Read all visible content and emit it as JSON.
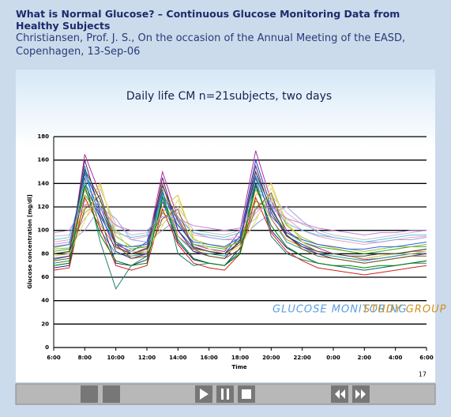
{
  "header": {
    "title": "What is Normal Glucose? – Continuous Glucose Monitoring Data from Healthy Subjects",
    "subtitle": [
      "Christiansen, Prof. J. S., On the occasion of the Annual Meeting of the EASD,",
      "Copenhagen, 13-Sep-06"
    ]
  },
  "chart_data": {
    "type": "line",
    "title": "Daily life CM n=21subjects, two days",
    "x_label": "Time",
    "y_label": "Glucose concentration [mg/dl]",
    "x": [
      6,
      7,
      8,
      9,
      10,
      11,
      12,
      13,
      14,
      15,
      16,
      17,
      18,
      19,
      20,
      21,
      22,
      23,
      24,
      25,
      26,
      27,
      28,
      29,
      30
    ],
    "xlim": [
      6,
      30
    ],
    "xticks": [
      {
        "value": 6,
        "label": "6:00"
      },
      {
        "value": 8,
        "label": "8:00"
      },
      {
        "value": 10,
        "label": "10:00"
      },
      {
        "value": 12,
        "label": "12:00"
      },
      {
        "value": 14,
        "label": "14:00"
      },
      {
        "value": 16,
        "label": "16:00"
      },
      {
        "value": 18,
        "label": "18:00"
      },
      {
        "value": 20,
        "label": "20:00"
      },
      {
        "value": 22,
        "label": "22:00"
      },
      {
        "value": 24,
        "label": "0:00"
      },
      {
        "value": 26,
        "label": "2:00"
      },
      {
        "value": 28,
        "label": "4:00"
      },
      {
        "value": 30,
        "label": "6:00"
      }
    ],
    "ylim": [
      0,
      180
    ],
    "yticks": [
      0,
      20,
      40,
      60,
      80,
      100,
      120,
      140,
      160,
      180
    ],
    "grid": true,
    "series": [
      {
        "color": "#1f3fbf",
        "values": [
          78,
          80,
          150,
          120,
          88,
          82,
          90,
          140,
          100,
          85,
          82,
          80,
          95,
          160,
          120,
          95,
          88,
          82,
          80,
          78,
          76,
          78,
          80,
          82,
          84
        ]
      },
      {
        "color": "#b0309a",
        "values": [
          70,
          72,
          165,
          130,
          90,
          80,
          85,
          150,
          110,
          88,
          84,
          82,
          100,
          168,
          125,
          100,
          90,
          85,
          80,
          78,
          75,
          76,
          78,
          80,
          82
        ]
      },
      {
        "color": "#e0c030",
        "values": [
          85,
          88,
          120,
          140,
          95,
          86,
          88,
          120,
          130,
          92,
          88,
          85,
          90,
          130,
          140,
          105,
          92,
          88,
          85,
          82,
          80,
          82,
          84,
          86,
          88
        ]
      },
      {
        "color": "#20a0a0",
        "values": [
          75,
          78,
          155,
          100,
          80,
          78,
          80,
          130,
          95,
          82,
          80,
          78,
          90,
          150,
          110,
          90,
          84,
          80,
          78,
          76,
          74,
          76,
          78,
          80,
          80
        ]
      },
      {
        "color": "#f0a0c0",
        "values": [
          90,
          92,
          110,
          125,
          100,
          92,
          95,
          110,
          115,
          96,
          94,
          92,
          95,
          115,
          125,
          110,
          100,
          95,
          92,
          90,
          88,
          90,
          92,
          94,
          95
        ]
      },
      {
        "color": "#202080",
        "values": [
          68,
          70,
          140,
          110,
          72,
          70,
          75,
          125,
          90,
          75,
          72,
          70,
          85,
          140,
          100,
          85,
          78,
          72,
          70,
          68,
          66,
          68,
          70,
          72,
          74
        ]
      },
      {
        "color": "#40b040",
        "values": [
          82,
          84,
          130,
          115,
          90,
          84,
          86,
          115,
          105,
          88,
          86,
          84,
          92,
          125,
          118,
          98,
          90,
          86,
          84,
          82,
          80,
          82,
          84,
          86,
          86
        ]
      },
      {
        "color": "#c0c0c0",
        "values": [
          95,
          96,
          125,
          135,
          105,
          96,
          98,
          105,
          120,
          100,
          98,
          96,
          100,
          110,
          130,
          115,
          105,
          100,
          96,
          94,
          92,
          94,
          96,
          98,
          100
        ]
      },
      {
        "color": "#208070",
        "values": [
          72,
          74,
          145,
          90,
          50,
          70,
          78,
          135,
          80,
          70,
          72,
          70,
          82,
          145,
          95,
          80,
          75,
          72,
          70,
          68,
          66,
          68,
          70,
          72,
          72
        ]
      },
      {
        "color": "#e08030",
        "values": [
          80,
          82,
          135,
          105,
          85,
          80,
          82,
          140,
          95,
          84,
          82,
          80,
          88,
          135,
          110,
          92,
          86,
          82,
          80,
          78,
          76,
          78,
          80,
          82,
          82
        ]
      },
      {
        "color": "#a0a0e0",
        "values": [
          88,
          90,
          100,
          120,
          110,
          92,
          90,
          100,
          110,
          98,
          94,
          92,
          92,
          105,
          115,
          120,
          108,
          98,
          94,
          92,
          90,
          90,
          92,
          92,
          94
        ]
      },
      {
        "color": "#602080",
        "values": [
          76,
          78,
          160,
          115,
          82,
          76,
          80,
          145,
          100,
          82,
          78,
          76,
          92,
          155,
          115,
          95,
          86,
          80,
          76,
          74,
          72,
          74,
          76,
          78,
          80
        ]
      },
      {
        "color": "#90c040",
        "values": [
          84,
          85,
          115,
          125,
          95,
          86,
          86,
          118,
          112,
          92,
          88,
          86,
          90,
          120,
          128,
          104,
          94,
          88,
          86,
          84,
          82,
          84,
          86,
          86,
          88
        ]
      },
      {
        "color": "#d02020",
        "values": [
          66,
          68,
          128,
          102,
          70,
          66,
          70,
          118,
          88,
          72,
          68,
          66,
          80,
          128,
          98,
          82,
          74,
          68,
          66,
          64,
          62,
          64,
          66,
          68,
          70
        ]
      },
      {
        "color": "#60c0e0",
        "values": [
          92,
          94,
          140,
          120,
          98,
          94,
          96,
          125,
          110,
          98,
          96,
          94,
          98,
          135,
          122,
          106,
          100,
          96,
          94,
          92,
          90,
          92,
          94,
          96,
          96
        ]
      },
      {
        "color": "#806020",
        "values": [
          74,
          76,
          118,
          130,
          88,
          76,
          78,
          110,
          118,
          84,
          78,
          76,
          84,
          118,
          132,
          96,
          84,
          78,
          76,
          74,
          72,
          74,
          76,
          78,
          78
        ]
      },
      {
        "color": "#3060e0",
        "values": [
          86,
          88,
          148,
          112,
          88,
          86,
          88,
          132,
          104,
          90,
          88,
          86,
          94,
          146,
          112,
          98,
          92,
          88,
          86,
          84,
          84,
          86,
          86,
          88,
          90
        ]
      },
      {
        "color": "#e0e060",
        "values": [
          78,
          80,
          108,
          138,
          100,
          82,
          82,
          104,
          126,
          94,
          84,
          80,
          86,
          108,
          136,
          108,
          90,
          82,
          80,
          78,
          76,
          78,
          80,
          80,
          82
        ]
      },
      {
        "color": "#008000",
        "values": [
          70,
          72,
          138,
          96,
          74,
          70,
          72,
          128,
          92,
          76,
          72,
          70,
          80,
          138,
          104,
          86,
          78,
          72,
          70,
          70,
          68,
          70,
          70,
          72,
          74
        ]
      },
      {
        "color": "#c080e0",
        "values": [
          98,
          100,
          122,
          118,
          104,
          100,
          100,
          112,
          110,
          104,
          102,
          100,
          102,
          118,
          120,
          110,
          106,
          102,
          100,
          98,
          96,
          98,
          98,
          100,
          100
        ]
      },
      {
        "color": "#404040",
        "values": [
          80,
          82,
          152,
          126,
          86,
          80,
          84,
          138,
          108,
          86,
          82,
          80,
          90,
          150,
          118,
          96,
          86,
          82,
          80,
          78,
          78,
          80,
          80,
          82,
          84
        ]
      }
    ]
  },
  "logo": {
    "text": "GLUCOSE MONITORING",
    "accent": "STUDY GROUP"
  },
  "slide_number": "17"
}
